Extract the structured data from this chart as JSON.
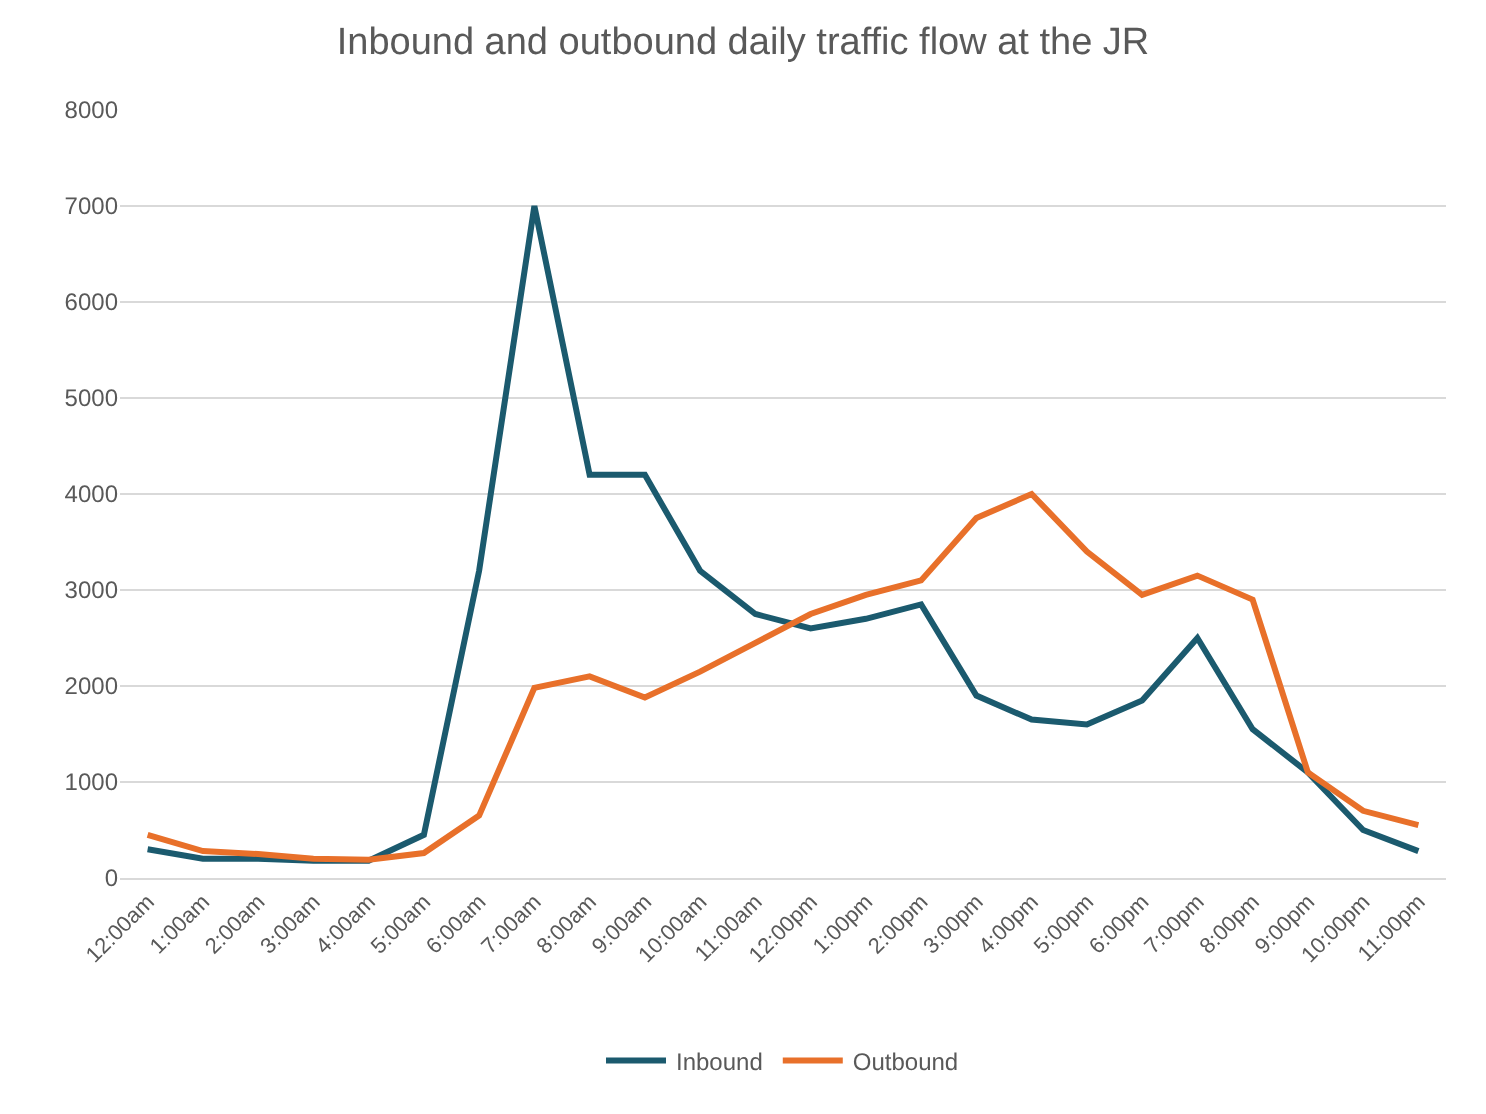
{
  "chart_data": {
    "type": "line",
    "title": "Inbound and outbound daily traffic flow at the JR",
    "categories": [
      "12:00am",
      "1:00am",
      "2:00am",
      "3:00am",
      "4:00am",
      "5:00am",
      "6:00am",
      "7:00am",
      "8:00am",
      "9:00am",
      "10:00am",
      "11:00am",
      "12:00pm",
      "1:00pm",
      "2:00pm",
      "3:00pm",
      "4:00pm",
      "5:00pm",
      "6:00pm",
      "7:00pm",
      "8:00pm",
      "9:00pm",
      "10:00pm",
      "11:00pm"
    ],
    "series": [
      {
        "name": "Inbound",
        "color": "#1b5a6e",
        "values": [
          300,
          200,
          200,
          180,
          180,
          450,
          3200,
          7000,
          4200,
          4200,
          3200,
          2750,
          2600,
          2700,
          2850,
          1900,
          1650,
          1600,
          1850,
          2500,
          1550,
          1100,
          500,
          280
        ]
      },
      {
        "name": "Outbound",
        "color": "#e8702a",
        "values": [
          450,
          280,
          250,
          200,
          190,
          260,
          650,
          1980,
          2100,
          1880,
          2150,
          2450,
          2750,
          2950,
          3100,
          3750,
          4000,
          3400,
          2950,
          3150,
          2900,
          1100,
          700,
          550
        ]
      }
    ],
    "ylim": [
      0,
      8000
    ],
    "yticks": [
      0,
      1000,
      2000,
      3000,
      4000,
      5000,
      6000,
      7000,
      8000
    ],
    "grid": "y",
    "legend": "bottom",
    "line_style": "solid"
  }
}
